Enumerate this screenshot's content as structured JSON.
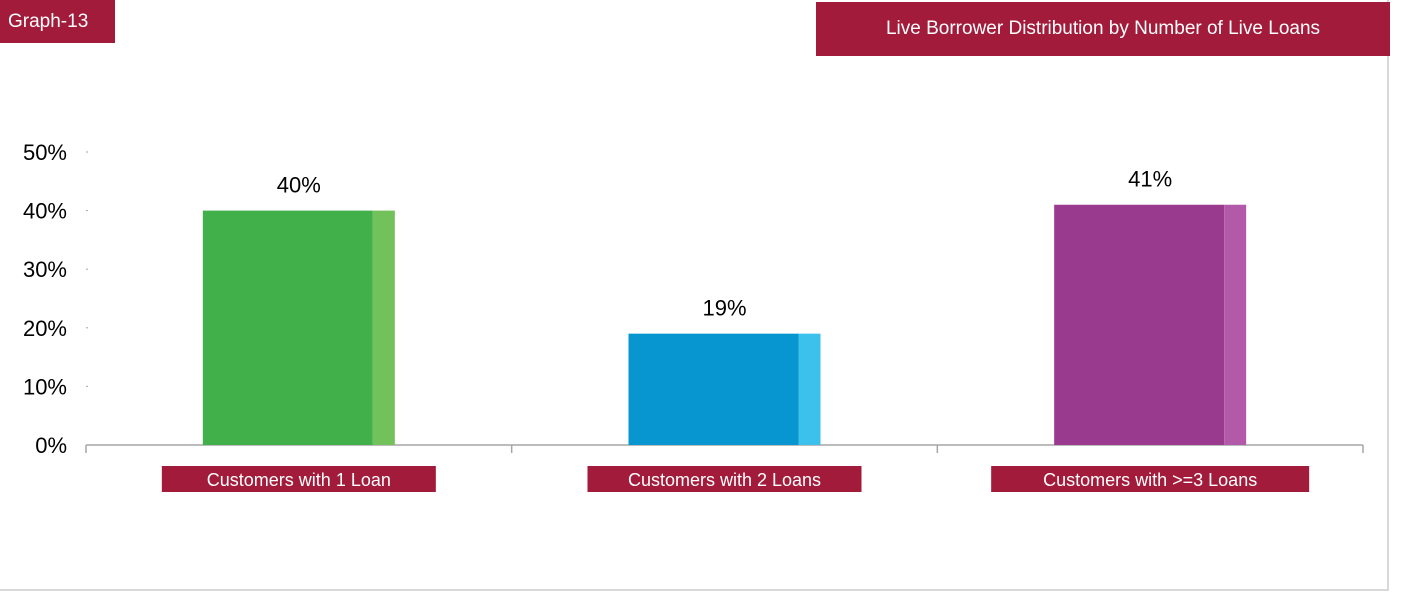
{
  "badge": "Graph-13",
  "chart_data": {
    "type": "bar",
    "title": "Live Borrower Distribution by Number of Live Loans",
    "categories": [
      "Customers with 1 Loan",
      "Customers with 2 Loans",
      "Customers with >=3 Loans"
    ],
    "values": [
      40,
      19,
      41
    ],
    "data_labels": [
      "40%",
      "19%",
      "41%"
    ],
    "yticks": [
      "0%",
      "10%",
      "20%",
      "30%",
      "40%",
      "50%"
    ],
    "ylim": [
      0,
      50
    ],
    "xlabel": "",
    "ylabel": "",
    "grid": false,
    "legend": "none",
    "colors": {
      "bars": [
        "#41b04b",
        "#0796cf",
        "#993a8f"
      ],
      "bar_edges": [
        "#72c15a",
        "#3bc1eb",
        "#b25aa9"
      ],
      "category_band": "#a31b3a",
      "axis": "#a6a6a6"
    }
  }
}
